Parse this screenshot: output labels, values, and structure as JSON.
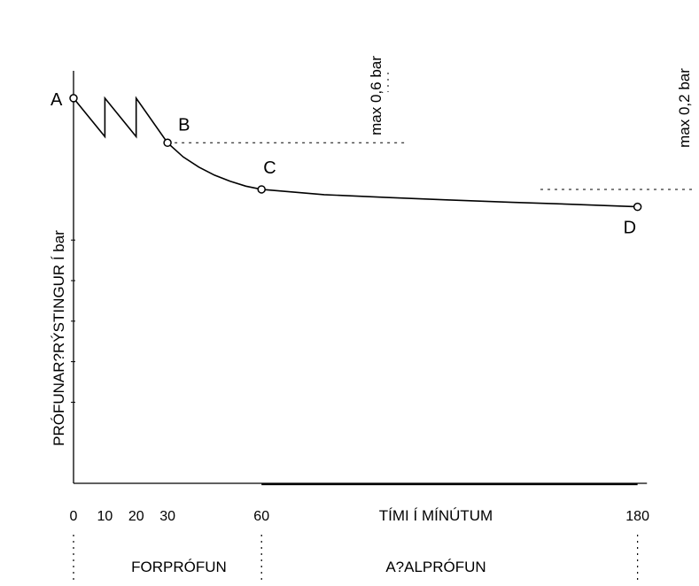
{
  "chart_data": {
    "type": "line",
    "xlabel": "TÍMI  Í  MÍNÚTUM",
    "ylabel": "PRÓFUNAR?RÝSTINGUR  Í  bar",
    "xlim": [
      0,
      190
    ],
    "ylim": [
      0,
      10
    ],
    "x_ticks": [
      {
        "value": 0,
        "label": "0"
      },
      {
        "value": 10,
        "label": "10"
      },
      {
        "value": 20,
        "label": "20"
      },
      {
        "value": 30,
        "label": "30"
      },
      {
        "value": 60,
        "label": "60"
      },
      {
        "value": 180,
        "label": "180"
      }
    ],
    "series": [
      {
        "values": [
          {
            "x": 0,
            "y": 9.5
          },
          {
            "x": 10,
            "y": 8.55
          },
          {
            "x": 10,
            "y": 9.5
          },
          {
            "x": 20,
            "y": 8.55
          },
          {
            "x": 20,
            "y": 9.5
          },
          {
            "x": 30,
            "y": 8.4
          },
          {
            "x": 35,
            "y": 8.05
          },
          {
            "x": 40,
            "y": 7.8
          },
          {
            "x": 45,
            "y": 7.6
          },
          {
            "x": 50,
            "y": 7.45
          },
          {
            "x": 55,
            "y": 7.33
          },
          {
            "x": 60,
            "y": 7.25
          },
          {
            "x": 80,
            "y": 7.12
          },
          {
            "x": 100,
            "y": 7.05
          },
          {
            "x": 120,
            "y": 6.99
          },
          {
            "x": 140,
            "y": 6.93
          },
          {
            "x": 160,
            "y": 6.88
          },
          {
            "x": 180,
            "y": 6.82
          }
        ]
      }
    ],
    "points": [
      {
        "label": "A",
        "x": 0,
        "y": 9.5
      },
      {
        "label": "B",
        "x": 30,
        "y": 8.4
      },
      {
        "label": "C",
        "x": 60,
        "y": 7.25
      },
      {
        "label": "D",
        "x": 180,
        "y": 6.82
      }
    ],
    "annotations": [
      {
        "text": "max 0,6  bar",
        "ref_y": 8.4
      },
      {
        "text": "max 0,2  bar",
        "ref_y": 7.25
      }
    ],
    "phases": [
      {
        "label": "FORPRÓFUN",
        "from": 0,
        "to": 60
      },
      {
        "label": "A?ALPRÓFUN",
        "from": 60,
        "to": 180
      }
    ],
    "grid": false,
    "legend": "none"
  }
}
